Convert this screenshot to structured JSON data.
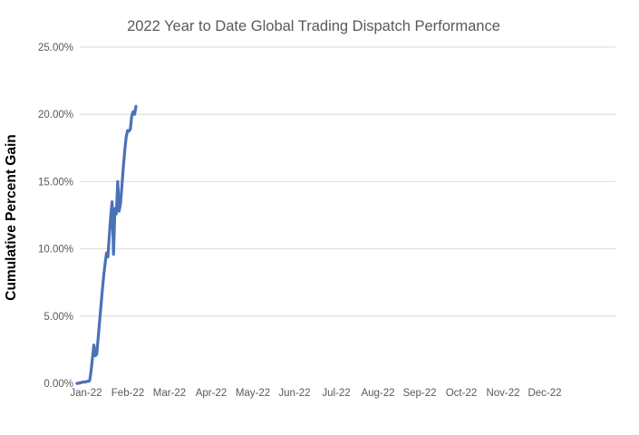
{
  "colors": {
    "background": "#FFFFFF",
    "title_text": "#595959",
    "tick_text": "#595959",
    "axis_title_text": "#000000",
    "gridline": "#E1E1E1",
    "series_line": "#4A72B6"
  },
  "chart_data": {
    "type": "line",
    "title": "2022 Year to Date Global Trading Dispatch Performance",
    "ylabel": "Cumulative Percent Gain",
    "xlabel": "",
    "legend": "none",
    "grid": "horizontal gridlines at 5% steps; no axis line at 0%",
    "ylim": [
      0,
      25
    ],
    "y_ticks": [
      0,
      5,
      10,
      15,
      20,
      25
    ],
    "y_tick_labels": [
      "0.00%",
      "5.00%",
      "10.00%",
      "15.00%",
      "20.00%",
      "25.00%"
    ],
    "y_gridlines_pct": [
      5,
      10,
      15,
      20,
      25
    ],
    "x_tick_labels": [
      "Jan-22",
      "Feb-22",
      "Mar-22",
      "Apr-22",
      "May-22",
      "Jun-22",
      "Jul-22",
      "Aug-22",
      "Sep-22",
      "Oct-22",
      "Nov-22",
      "Dec-22"
    ],
    "x_axis_note": "Monthly category labels span Jan-22 through Dec-22; plotted cumulative-gain data covers only early January to mid-February, rising from 0% to about 20.6%",
    "series": [
      {
        "name": "Cumulative Percent Gain",
        "color": "#4A72B6",
        "x_unit": "day (approx., day 1 = start of Jan-22)",
        "x_start_day": 1,
        "values_pct": [
          0.0,
          0.0,
          0.05,
          0.05,
          0.1,
          0.1,
          0.1,
          0.15,
          0.15,
          0.2,
          0.9,
          1.9,
          2.85,
          2.05,
          2.15,
          3.3,
          4.5,
          5.7,
          6.9,
          8.0,
          8.9,
          9.7,
          9.4,
          11.0,
          12.4,
          13.5,
          9.6,
          13.0,
          12.6,
          15.0,
          12.8,
          13.4,
          14.7,
          16.1,
          17.3,
          18.3,
          18.8,
          18.75,
          18.9,
          19.9,
          20.2,
          20.0,
          20.6
        ]
      }
    ]
  }
}
